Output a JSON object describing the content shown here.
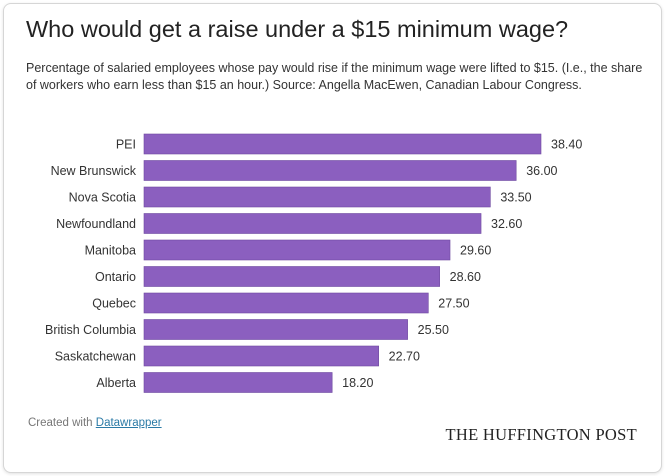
{
  "header": {
    "title": "Who would get a raise under a $15 minimum wage?",
    "subtitle": "Percentage of salaried employees whose pay would rise if the minimum wage were lifted to $15. (I.e., the share of workers who earn less than $15 an hour.) Source: Angella MacEwen, Canadian Labour Congress."
  },
  "footer": {
    "created_with": "Created with ",
    "tool_link": "Datawrapper",
    "brand": "THE HUFFINGTON POST"
  },
  "colors": {
    "bar": "#8b5fbf",
    "bar_edge": "#6f4aa0",
    "label": "#333333"
  },
  "chart_data": {
    "type": "bar",
    "orientation": "horizontal",
    "title": "Who would get a raise under a $15 minimum wage?",
    "categories": [
      "PEI",
      "New Brunswick",
      "Nova Scotia",
      "Newfoundland",
      "Manitoba",
      "Ontario",
      "Quebec",
      "British Columbia",
      "Saskatchewan",
      "Alberta"
    ],
    "values": [
      38.4,
      36.0,
      33.5,
      32.6,
      29.6,
      28.6,
      27.5,
      25.5,
      22.7,
      18.2
    ],
    "value_labels": [
      "38.40",
      "36.00",
      "33.50",
      "32.60",
      "29.60",
      "28.60",
      "27.50",
      "25.50",
      "22.70",
      "18.20"
    ],
    "xlim": [
      0,
      38.4
    ],
    "grid": false,
    "legend": "none"
  }
}
